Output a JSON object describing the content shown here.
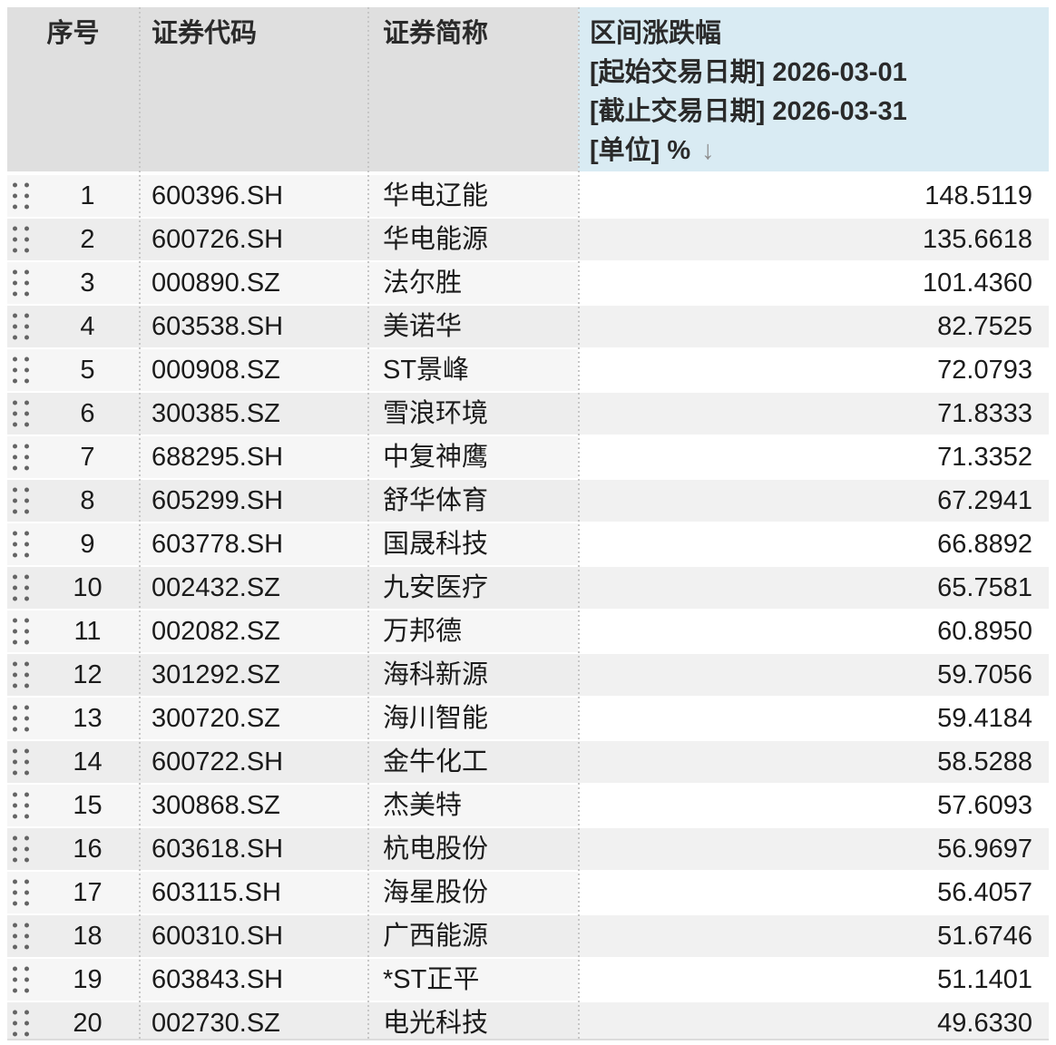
{
  "table": {
    "columns": {
      "index_label": "序号",
      "code_label": "证券代码",
      "name_label": "证券简称",
      "change_label": "区间涨跌幅",
      "change_sub1": "[起始交易日期] 2026-03-01",
      "change_sub2": "[截止交易日期] 2026-03-31",
      "change_sub3": "[单位] %",
      "sort_icon": "↓"
    },
    "rows": [
      {
        "index": "1",
        "code": "600396.SH",
        "name": "华电辽能",
        "change": "148.5119"
      },
      {
        "index": "2",
        "code": "600726.SH",
        "name": "华电能源",
        "change": "135.6618"
      },
      {
        "index": "3",
        "code": "000890.SZ",
        "name": "法尔胜",
        "change": "101.4360"
      },
      {
        "index": "4",
        "code": "603538.SH",
        "name": "美诺华",
        "change": "82.7525"
      },
      {
        "index": "5",
        "code": "000908.SZ",
        "name": "ST景峰",
        "change": "72.0793"
      },
      {
        "index": "6",
        "code": "300385.SZ",
        "name": "雪浪环境",
        "change": "71.8333"
      },
      {
        "index": "7",
        "code": "688295.SH",
        "name": "中复神鹰",
        "change": "71.3352"
      },
      {
        "index": "8",
        "code": "605299.SH",
        "name": "舒华体育",
        "change": "67.2941"
      },
      {
        "index": "9",
        "code": "603778.SH",
        "name": "国晟科技",
        "change": "66.8892"
      },
      {
        "index": "10",
        "code": "002432.SZ",
        "name": "九安医疗",
        "change": "65.7581"
      },
      {
        "index": "11",
        "code": "002082.SZ",
        "name": "万邦德",
        "change": "60.8950"
      },
      {
        "index": "12",
        "code": "301292.SZ",
        "name": "海科新源",
        "change": "59.7056"
      },
      {
        "index": "13",
        "code": "300720.SZ",
        "name": "海川智能",
        "change": "59.4184"
      },
      {
        "index": "14",
        "code": "600722.SH",
        "name": "金牛化工",
        "change": "58.5288"
      },
      {
        "index": "15",
        "code": "300868.SZ",
        "name": "杰美特",
        "change": "57.6093"
      },
      {
        "index": "16",
        "code": "603618.SH",
        "name": "杭电股份",
        "change": "56.9697"
      },
      {
        "index": "17",
        "code": "603115.SH",
        "name": "海星股份",
        "change": "56.4057"
      },
      {
        "index": "18",
        "code": "600310.SH",
        "name": "广西能源",
        "change": "51.6746"
      },
      {
        "index": "19",
        "code": "603843.SH",
        "name": "*ST正平",
        "change": "51.1401"
      },
      {
        "index": "20",
        "code": "002730.SZ",
        "name": "电光科技",
        "change": "49.6330"
      }
    ]
  },
  "colors": {
    "header_gray": "#dfdfdf",
    "header_blue": "#d9ebf3",
    "row_left_odd": "#f6f6f6",
    "row_left_even": "#ededed",
    "row_value_odd": "#ffffff",
    "row_value_even": "#f1f1f1",
    "text": "#1b1b1b",
    "sort_arrow": "#8c8c8c"
  }
}
